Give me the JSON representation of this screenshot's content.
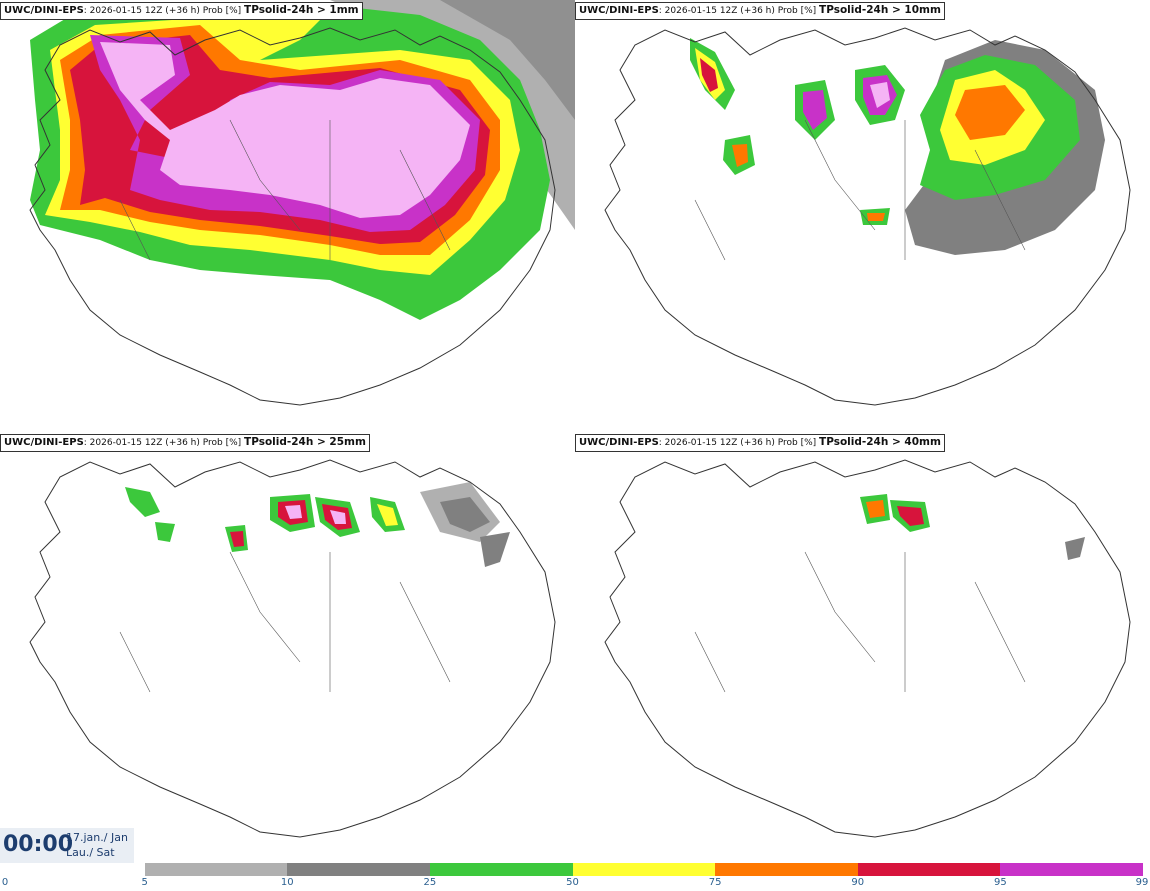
{
  "panels": [
    {
      "model": "UWC/DINI-EPS",
      "meta": ": 2026-01-15 12Z (+36 h) Prob [%] ",
      "variable": "TPsolid-24h > 1mm"
    },
    {
      "model": "UWC/DINI-EPS",
      "meta": ": 2026-01-15 12Z (+36 h) Prob [%] ",
      "variable": "TPsolid-24h > 10mm"
    },
    {
      "model": "UWC/DINI-EPS",
      "meta": ": 2026-01-15 12Z (+36 h) Prob [%] ",
      "variable": "TPsolid-24h > 25mm"
    },
    {
      "model": "UWC/DINI-EPS",
      "meta": ": 2026-01-15 12Z (+36 h) Prob [%] ",
      "variable": "TPsolid-24h > 40mm"
    }
  ],
  "time": {
    "hour": "00:00",
    "date_line1": "17.jan./ Jan",
    "date_line2": "Lau./ Sat"
  },
  "legend": {
    "ticks": [
      "0",
      "5",
      "10",
      "25",
      "50",
      "75",
      "90",
      "95",
      "99"
    ],
    "colors": [
      "#ffffff",
      "#b0b0b0",
      "#808080",
      "#3cc83c",
      "#ffff32",
      "#ff7800",
      "#d7143c",
      "#c832c8",
      "#f5b4f5"
    ]
  }
}
